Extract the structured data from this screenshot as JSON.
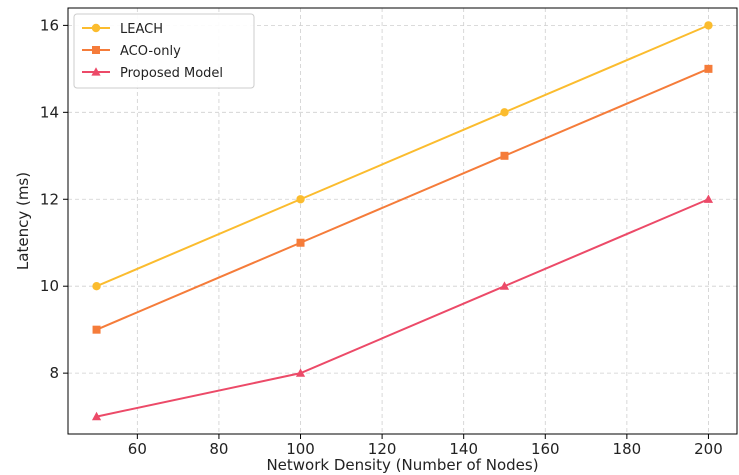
{
  "chart_data": {
    "type": "line",
    "title": "",
    "xlabel": "Network Density (Number of Nodes)",
    "ylabel": "Latency (ms)",
    "x": [
      50,
      100,
      150,
      200
    ],
    "xlim": [
      43,
      207
    ],
    "ylim": [
      6.6,
      16.4
    ],
    "xticks": [
      60,
      80,
      100,
      120,
      140,
      160,
      180,
      200
    ],
    "yticks": [
      8,
      10,
      12,
      14,
      16
    ],
    "grid": true,
    "legend_position": "top-left",
    "series": [
      {
        "name": "LEACH",
        "values": [
          10,
          12,
          14,
          16
        ],
        "color": "#FBBC2E",
        "marker": "circle"
      },
      {
        "name": "ACO-only",
        "values": [
          9,
          11,
          13,
          15
        ],
        "color": "#F57C3A",
        "marker": "square"
      },
      {
        "name": "Proposed Model",
        "values": [
          7,
          8,
          10,
          12
        ],
        "color": "#EC4A68",
        "marker": "triangle"
      }
    ]
  }
}
